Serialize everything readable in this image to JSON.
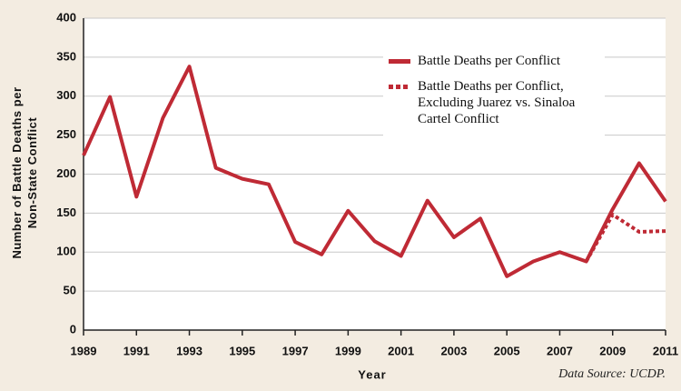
{
  "chart_data": {
    "type": "line",
    "x": [
      1989,
      1990,
      1991,
      1992,
      1993,
      1994,
      1995,
      1996,
      1997,
      1998,
      1999,
      2000,
      2001,
      2002,
      2003,
      2004,
      2005,
      2006,
      2007,
      2008,
      2009,
      2010,
      2011
    ],
    "series": [
      {
        "name": "Battle Deaths per Conflict",
        "color": "#bf2a35",
        "dash": "solid",
        "values": [
          224,
          299,
          171,
          272,
          338,
          208,
          194,
          187,
          113,
          97,
          153,
          114,
          95,
          166,
          119,
          143,
          69,
          88,
          100,
          88,
          155,
          214,
          165
        ]
      },
      {
        "name": "Battle Deaths per Conflict, Excluding Juarez vs. Sinaloa Cartel Conflict",
        "color": "#bf2a35",
        "dash": "dotted",
        "values": [
          null,
          null,
          null,
          null,
          null,
          null,
          null,
          null,
          null,
          null,
          null,
          null,
          null,
          null,
          null,
          null,
          null,
          null,
          null,
          88,
          148,
          126,
          127
        ]
      }
    ],
    "xlim": [
      1989,
      2011
    ],
    "xticks": [
      1989,
      1991,
      1993,
      1995,
      1997,
      1999,
      2001,
      2003,
      2005,
      2007,
      2009,
      2011
    ],
    "ylim": [
      0,
      400
    ],
    "yticks": [
      0,
      50,
      100,
      150,
      200,
      250,
      300,
      350,
      400
    ],
    "x_label": "Year",
    "y_label": "Number of Battle Deaths per Non-State Conflict",
    "source": "Data Source: UCDP.",
    "grid": true,
    "legend": "upper right"
  }
}
